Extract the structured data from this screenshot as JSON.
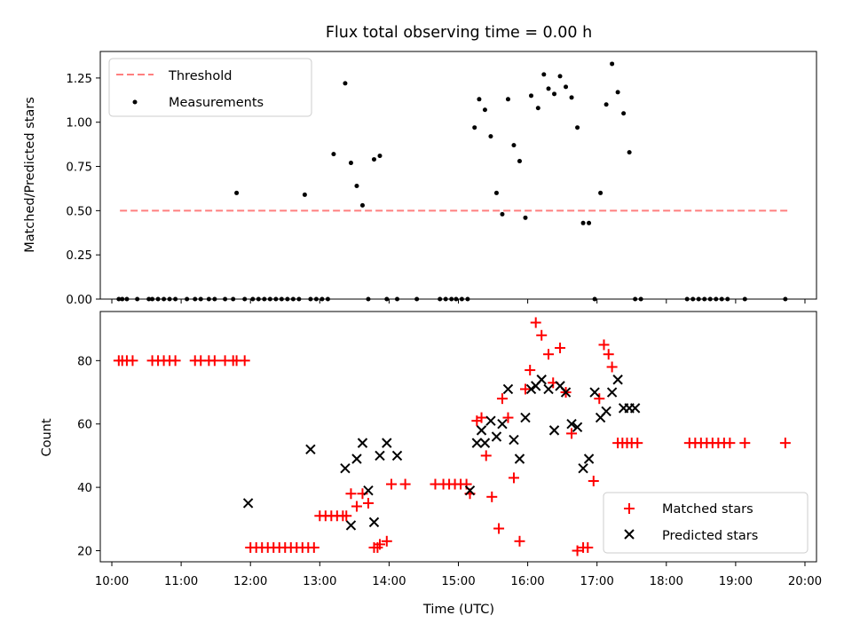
{
  "chart_data": [
    {
      "type": "scatter",
      "title": "Flux total observing time = 0.00 h",
      "xlabel": "",
      "ylabel": "Matched/Predicted stars",
      "xlim": [
        "09:50",
        "20:10"
      ],
      "ylim": [
        0,
        1.4
      ],
      "yticks": [
        "0.00",
        "0.25",
        "0.50",
        "0.75",
        "1.00",
        "1.25"
      ],
      "grid": false,
      "legend_position": "top-left",
      "series": [
        {
          "name": "Threshold",
          "kind": "dashed-line",
          "color": "#ff7f7f",
          "x": [
            "10:07",
            "19:45"
          ],
          "y": [
            0.5,
            0.5
          ]
        },
        {
          "name": "Measurements",
          "kind": "points",
          "color": "#000000",
          "x": [
            "10:06",
            "10:09",
            "10:13",
            "10:22",
            "10:32",
            "10:35",
            "10:40",
            "10:45",
            "10:50",
            "10:55",
            "11:05",
            "11:12",
            "11:17",
            "11:24",
            "11:29",
            "11:38",
            "11:45",
            "11:48",
            "11:55",
            "12:02",
            "12:07",
            "12:12",
            "12:17",
            "12:22",
            "12:27",
            "12:32",
            "12:37",
            "12:42",
            "12:47",
            "12:52",
            "12:57",
            "13:02",
            "13:07",
            "13:12",
            "13:22",
            "13:27",
            "13:32",
            "13:37",
            "13:42",
            "13:47",
            "13:52",
            "13:58",
            "14:07",
            "14:24",
            "14:44",
            "14:49",
            "14:54",
            "14:58",
            "15:03",
            "15:08",
            "15:14",
            "15:18",
            "15:23",
            "15:28",
            "15:33",
            "15:38",
            "15:43",
            "15:48",
            "15:53",
            "15:58",
            "16:03",
            "16:09",
            "16:14",
            "16:18",
            "16:23",
            "16:28",
            "16:33",
            "16:38",
            "16:43",
            "16:48",
            "16:53",
            "16:58",
            "17:03",
            "17:08",
            "17:13",
            "17:18",
            "17:23",
            "17:28",
            "17:33",
            "17:38",
            "18:18",
            "18:23",
            "18:28",
            "18:33",
            "18:38",
            "18:43",
            "18:48",
            "18:53",
            "19:08",
            "19:43"
          ],
          "y": [
            0,
            0,
            0,
            0,
            0,
            0,
            0,
            0,
            0,
            0,
            0,
            0,
            0,
            0,
            0,
            0,
            0,
            0.6,
            0,
            0,
            0,
            0,
            0,
            0,
            0,
            0,
            0,
            0,
            0.59,
            0,
            0,
            0,
            0,
            0.82,
            1.22,
            0.77,
            0.64,
            0.53,
            0,
            0.79,
            0.81,
            0,
            0,
            0,
            0,
            0,
            0,
            0,
            0,
            0,
            0.97,
            1.13,
            1.07,
            0.92,
            0.6,
            0.48,
            1.13,
            0.87,
            0.78,
            0.46,
            1.15,
            1.08,
            1.27,
            1.19,
            1.16,
            1.26,
            1.2,
            1.14,
            0.97,
            0.43,
            0.43,
            0,
            0.6,
            1.1,
            1.33,
            1.17,
            1.05,
            0.83,
            0,
            0,
            0,
            0,
            0,
            0,
            0,
            0,
            0,
            0,
            0,
            0
          ]
        }
      ]
    },
    {
      "type": "scatter",
      "title": "",
      "xlabel": "Time (UTC)",
      "ylabel": "Count",
      "xlim": [
        "09:50",
        "20:10"
      ],
      "ylim": [
        16.5,
        95.5
      ],
      "xticks": [
        "10:00",
        "11:00",
        "12:00",
        "13:00",
        "14:00",
        "15:00",
        "16:00",
        "17:00",
        "18:00",
        "19:00",
        "20:00"
      ],
      "yticks": [
        "20",
        "40",
        "60",
        "80"
      ],
      "grid": false,
      "legend_position": "bottom-right",
      "series": [
        {
          "name": "Matched stars",
          "marker": "plus",
          "color": "#ff0000",
          "x": [
            "10:06",
            "10:09",
            "10:13",
            "10:18",
            "10:35",
            "10:40",
            "10:45",
            "10:50",
            "10:55",
            "11:12",
            "11:17",
            "11:24",
            "11:29",
            "11:38",
            "11:45",
            "11:48",
            "11:55",
            "12:00",
            "12:05",
            "12:10",
            "12:15",
            "12:20",
            "12:25",
            "12:30",
            "12:35",
            "12:40",
            "12:45",
            "12:50",
            "12:55",
            "13:00",
            "13:05",
            "13:10",
            "13:15",
            "13:20",
            "13:23",
            "13:27",
            "13:32",
            "13:37",
            "13:42",
            "13:47",
            "13:50",
            "13:52",
            "13:58",
            "14:02",
            "14:14",
            "14:40",
            "14:47",
            "14:52",
            "14:57",
            "15:02",
            "15:07",
            "15:10",
            "15:16",
            "15:20",
            "15:24",
            "15:29",
            "15:35",
            "15:38",
            "15:43",
            "15:48",
            "15:53",
            "15:58",
            "16:02",
            "16:07",
            "16:12",
            "16:18",
            "16:22",
            "16:28",
            "16:33",
            "16:38",
            "16:43",
            "16:48",
            "16:52",
            "16:57",
            "17:02",
            "17:06",
            "17:10",
            "17:13",
            "17:18",
            "17:22",
            "17:26",
            "17:30",
            "17:35",
            "18:20",
            "18:25",
            "18:30",
            "18:35",
            "18:40",
            "18:45",
            "18:50",
            "18:55",
            "19:08",
            "19:43"
          ],
          "y": [
            80,
            80,
            80,
            80,
            80,
            80,
            80,
            80,
            80,
            80,
            80,
            80,
            80,
            80,
            80,
            80,
            80,
            21,
            21,
            21,
            21,
            21,
            21,
            21,
            21,
            21,
            21,
            21,
            21,
            31,
            31,
            31,
            31,
            31,
            31,
            38,
            34,
            38,
            35,
            21,
            21,
            22,
            23,
            41,
            41,
            41,
            41,
            41,
            41,
            41,
            41,
            38,
            61,
            62,
            50,
            37,
            27,
            68,
            62,
            43,
            23,
            71,
            77,
            92,
            88,
            82,
            73,
            84,
            70,
            57,
            20,
            21,
            21,
            42,
            68,
            85,
            82,
            78,
            54,
            54,
            54,
            54,
            54,
            54,
            54,
            54,
            54,
            54,
            54,
            54,
            54,
            54,
            54
          ]
        },
        {
          "name": "Predicted stars",
          "marker": "x",
          "color": "#000000",
          "x": [
            "11:58",
            "12:52",
            "13:22",
            "13:27",
            "13:32",
            "13:37",
            "13:42",
            "13:47",
            "13:52",
            "13:58",
            "14:07",
            "15:10",
            "15:16",
            "15:20",
            "15:23",
            "15:28",
            "15:33",
            "15:38",
            "15:43",
            "15:48",
            "15:53",
            "15:58",
            "16:03",
            "16:07",
            "16:12",
            "16:18",
            "16:23",
            "16:28",
            "16:33",
            "16:38",
            "16:43",
            "16:48",
            "16:53",
            "16:58",
            "17:03",
            "17:08",
            "17:13",
            "17:18",
            "17:23",
            "17:28",
            "17:33"
          ],
          "y": [
            35,
            52,
            46,
            28,
            49,
            54,
            39,
            29,
            50,
            54,
            50,
            39,
            54,
            58,
            54,
            61,
            56,
            60,
            71,
            55,
            49,
            62,
            71,
            72,
            74,
            71,
            58,
            72,
            70,
            60,
            59,
            46,
            49,
            70,
            62,
            64,
            70,
            74,
            65,
            65,
            65
          ]
        }
      ]
    }
  ]
}
